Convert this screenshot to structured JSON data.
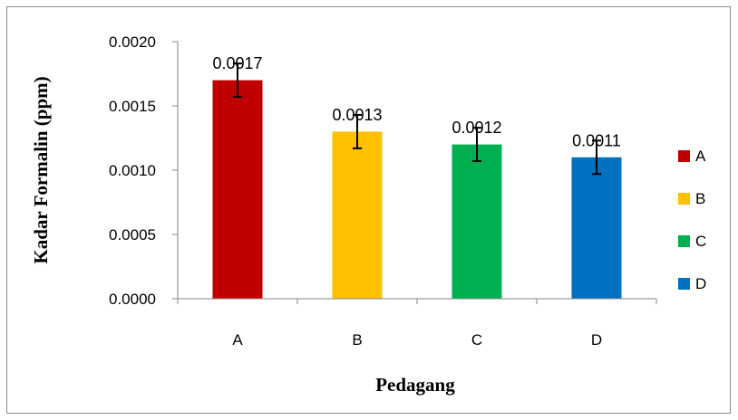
{
  "chart_data": {
    "type": "bar",
    "categories": [
      "A",
      "B",
      "C",
      "D"
    ],
    "values": [
      0.0017,
      0.0013,
      0.0012,
      0.0011
    ],
    "error": [
      0.00013,
      0.00013,
      0.00013,
      0.00013
    ],
    "data_labels": [
      "0.0017",
      "0.0013",
      "0.0012",
      "0.0011"
    ],
    "colors": [
      "#c00000",
      "#ffc000",
      "#00b050",
      "#0070c0"
    ],
    "ylim": [
      0,
      0.002
    ],
    "yticks": [
      0,
      0.0005,
      0.001,
      0.0015,
      0.002
    ],
    "ytick_labels": [
      "0.0000",
      "0.0005",
      "0.0010",
      "0.0015",
      "0.0020"
    ],
    "xlabel": "Pedagang",
    "ylabel": "Kadar Formalin (ppm)",
    "title": "",
    "grid": false,
    "legend": {
      "position": "right",
      "entries": [
        "A",
        "B",
        "C",
        "D"
      ]
    }
  }
}
